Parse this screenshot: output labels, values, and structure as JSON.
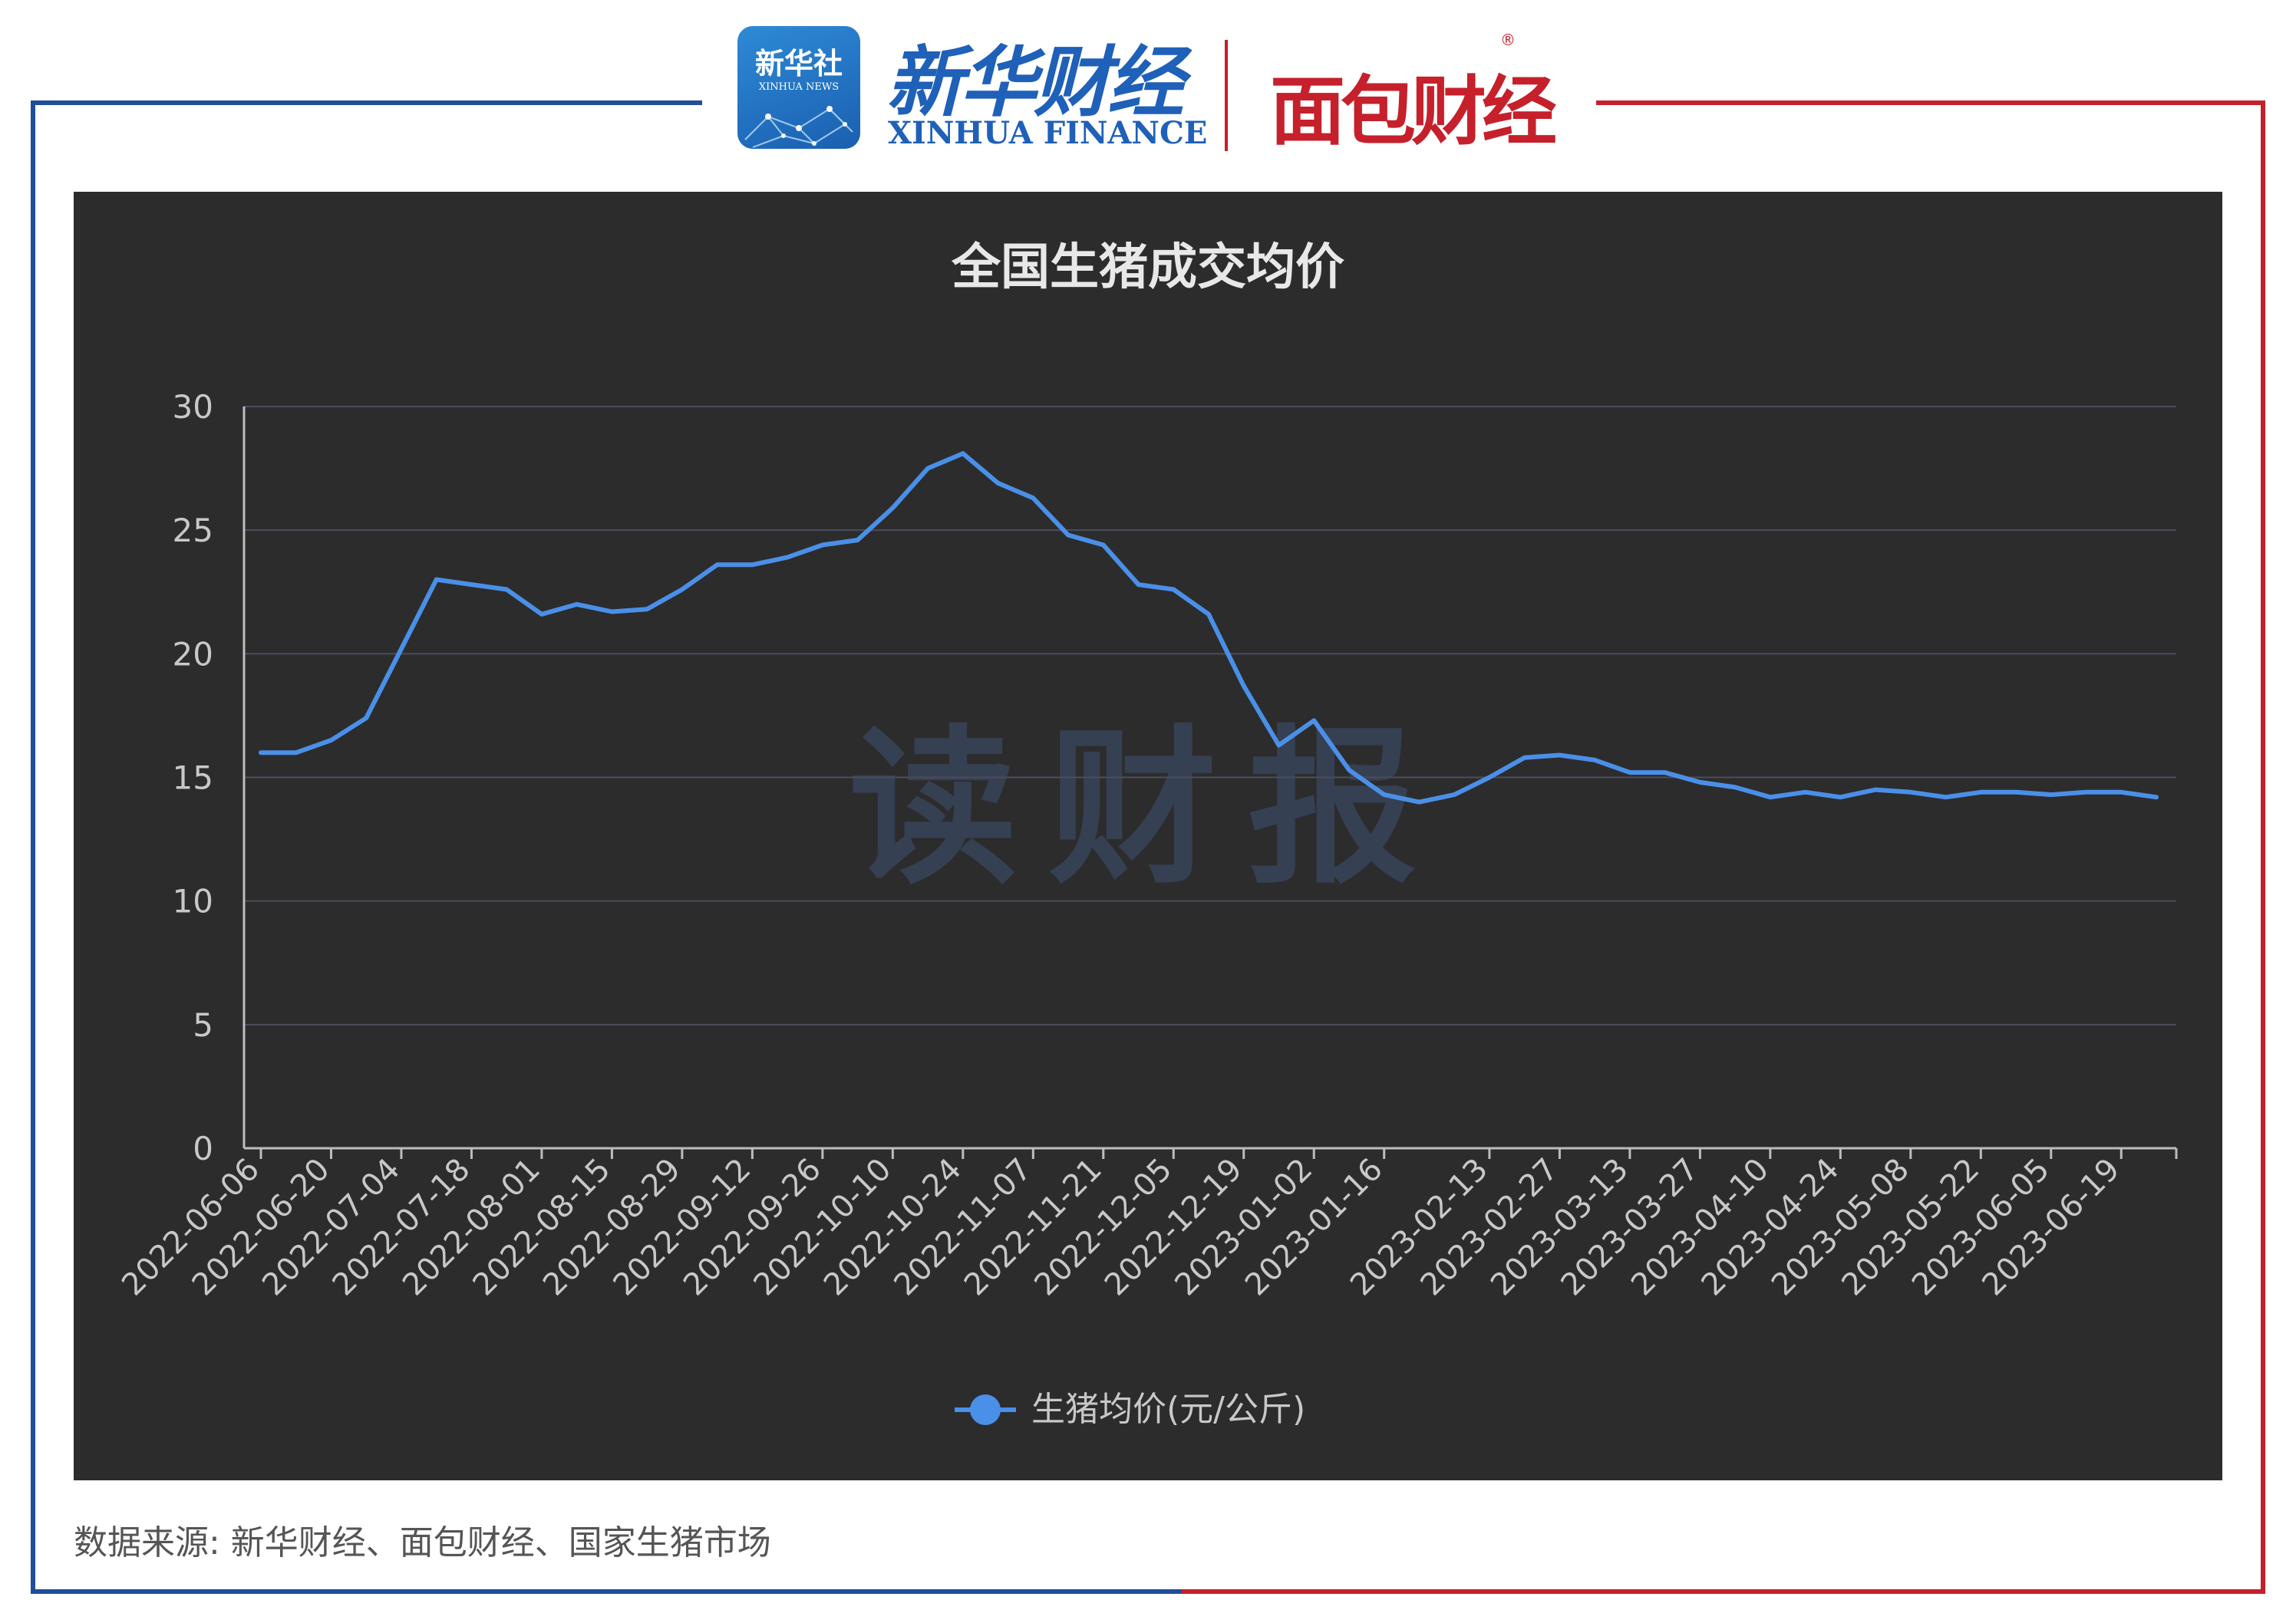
{
  "header": {
    "xinhua_logo_cn": "新华社",
    "xinhua_logo_en": "XINHUA NEWS",
    "brand_cn": "新华财经",
    "brand_en": "XINHUA FINANCE",
    "partner_cn": "面包财经",
    "registered_mark": "®"
  },
  "colors": {
    "frame_left": "#1f4e9a",
    "frame_right": "#c5202b",
    "panel_bg": "#2c2c2c",
    "series_line": "#4a8fe8",
    "axis_text": "#c8c8c8",
    "grid": "#4a4d5e"
  },
  "watermark": "读财报",
  "chart_data": {
    "type": "line",
    "title": "全国生猪成交均价",
    "ylim": [
      0,
      30
    ],
    "yticks": [
      0,
      5,
      10,
      15,
      20,
      25,
      30
    ],
    "grid": true,
    "legend_position": "bottom-center",
    "x": [
      "2022-06-06",
      "2022-06-13",
      "2022-06-20",
      "2022-06-27",
      "2022-07-04",
      "2022-07-11",
      "2022-07-18",
      "2022-07-25",
      "2022-08-01",
      "2022-08-08",
      "2022-08-15",
      "2022-08-22",
      "2022-08-29",
      "2022-09-05",
      "2022-09-12",
      "2022-09-19",
      "2022-09-26",
      "2022-10-03",
      "2022-10-10",
      "2022-10-17",
      "2022-10-24",
      "2022-10-31",
      "2022-11-07",
      "2022-11-14",
      "2022-11-21",
      "2022-11-28",
      "2022-12-05",
      "2022-12-12",
      "2022-12-19",
      "2022-12-26",
      "2023-01-02",
      "2023-01-09",
      "2023-01-16",
      "2023-01-30",
      "2023-02-06",
      "2023-02-13",
      "2023-02-20",
      "2023-02-27",
      "2023-03-06",
      "2023-03-13",
      "2023-03-20",
      "2023-03-27",
      "2023-04-03",
      "2023-04-10",
      "2023-04-17",
      "2023-04-24",
      "2023-05-01",
      "2023-05-08",
      "2023-05-15",
      "2023-05-22",
      "2023-05-29",
      "2023-06-05",
      "2023-06-12",
      "2023-06-19",
      "2023-06-26"
    ],
    "xtick_labels": [
      "2022-06-06",
      "2022-06-20",
      "2022-07-04",
      "2022-07-18",
      "2022-08-01",
      "2022-08-15",
      "2022-08-29",
      "2022-09-12",
      "2022-09-26",
      "2022-10-10",
      "2022-10-24",
      "2022-11-07",
      "2022-11-21",
      "2022-12-05",
      "2022-12-19",
      "2023-01-02",
      "2023-01-16",
      "2023-02-13",
      "2023-02-27",
      "2023-03-13",
      "2023-03-27",
      "2023-04-10",
      "2023-04-24",
      "2023-05-08",
      "2023-05-22",
      "2023-06-05",
      "2023-06-19"
    ],
    "series": [
      {
        "name": "生猪均价(元/公斤)",
        "values": [
          16.0,
          16.0,
          16.5,
          17.4,
          20.2,
          23.0,
          22.8,
          22.6,
          21.6,
          22.0,
          21.7,
          21.8,
          22.6,
          23.6,
          23.6,
          23.9,
          24.4,
          24.6,
          25.9,
          27.5,
          28.1,
          26.9,
          26.3,
          24.8,
          24.4,
          22.8,
          22.6,
          21.6,
          18.7,
          16.3,
          17.3,
          15.3,
          14.3,
          14.0,
          14.3,
          15.0,
          15.8,
          15.9,
          15.7,
          15.2,
          15.2,
          14.8,
          14.6,
          14.2,
          14.4,
          14.2,
          14.5,
          14.4,
          14.2,
          14.4,
          14.4,
          14.3,
          14.4,
          14.4,
          14.2
        ]
      }
    ]
  },
  "source_note": "数据来源: 新华财经、面包财经、国家生猪市场"
}
